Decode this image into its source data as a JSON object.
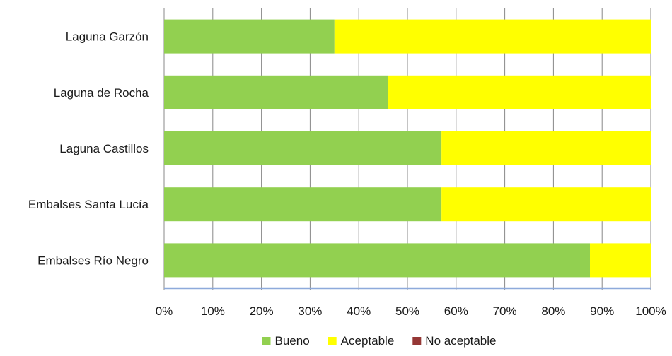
{
  "chart_data": {
    "type": "bar",
    "orientation": "horizontal",
    "stacked": "percent",
    "title": "",
    "xlabel": "",
    "ylabel": "",
    "categories": [
      "Laguna Garzón",
      "Laguna de Rocha",
      "Laguna Castillos",
      "Embalses Santa Lucía",
      "Embalses Río Negro"
    ],
    "series": [
      {
        "name": "Bueno",
        "color": "#92D050",
        "values": [
          35,
          46,
          57,
          57,
          87.5
        ]
      },
      {
        "name": "Aceptable",
        "color": "#FFFF00",
        "values": [
          65,
          54,
          43,
          43,
          12.5
        ]
      },
      {
        "name": "No aceptable",
        "color": "#953735",
        "values": [
          0,
          0,
          0,
          0,
          0
        ]
      }
    ],
    "xlim": [
      0,
      100
    ],
    "x_ticks": [
      "0%",
      "10%",
      "20%",
      "30%",
      "40%",
      "50%",
      "60%",
      "70%",
      "80%",
      "90%",
      "100%"
    ],
    "grid": "vertical",
    "legend_position": "bottom",
    "colors": {
      "grid": "#888888",
      "axis": "#8EAADB"
    }
  }
}
